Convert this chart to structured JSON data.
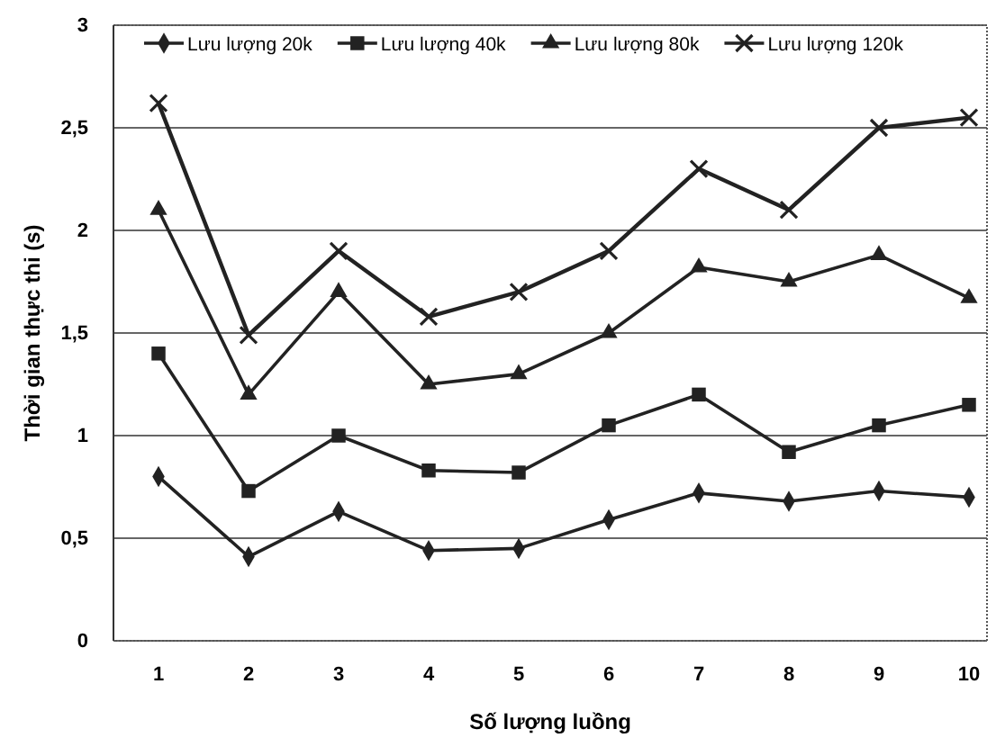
{
  "chart_data": {
    "type": "line",
    "xlabel": "Số lượng luồng",
    "ylabel": "Thời gian thực thi (s)",
    "categories": [
      "1",
      "2",
      "3",
      "4",
      "5",
      "6",
      "7",
      "8",
      "9",
      "10"
    ],
    "ylim": [
      0,
      3
    ],
    "yticks": [
      0,
      {
        "value": 0.5,
        "label": "0,5"
      },
      1,
      {
        "value": 1.5,
        "label": "1,5"
      },
      2,
      {
        "value": 2.5,
        "label": "2,5"
      },
      3
    ],
    "grid": "y",
    "legend": "top",
    "line_style": "solid",
    "series": [
      {
        "name": "Lưu lượng 20k",
        "color": "#222222",
        "marker": "diamond",
        "values": [
          0.8,
          0.41,
          0.63,
          0.44,
          0.45,
          0.59,
          0.72,
          0.68,
          0.73,
          0.7
        ]
      },
      {
        "name": "Lưu lượng 40k",
        "color": "#222222",
        "marker": "square",
        "values": [
          1.4,
          0.73,
          1.0,
          0.83,
          0.82,
          1.05,
          1.2,
          0.92,
          1.05,
          1.15
        ]
      },
      {
        "name": "Lưu lượng 80k",
        "color": "#222222",
        "marker": "triangle",
        "values": [
          2.1,
          1.2,
          1.7,
          1.25,
          1.3,
          1.5,
          1.82,
          1.75,
          1.88,
          1.67
        ]
      },
      {
        "name": "Lưu lượng 120k",
        "color": "#222222",
        "marker": "cross",
        "values": [
          2.62,
          1.49,
          1.9,
          1.58,
          1.7,
          1.9,
          2.3,
          2.1,
          2.5,
          2.55
        ]
      }
    ]
  }
}
